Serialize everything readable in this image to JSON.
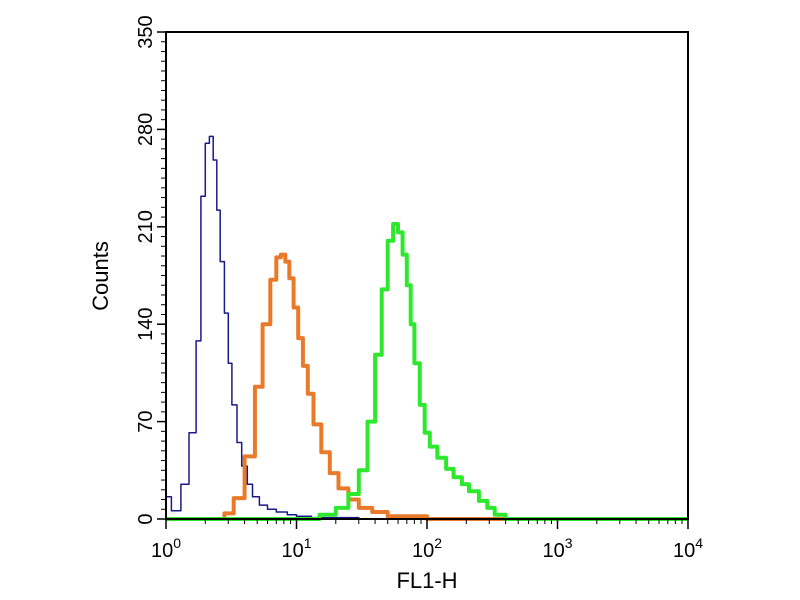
{
  "chart_data": {
    "type": "line",
    "xlabel": "FL1-H",
    "ylabel": "Counts",
    "xscale": "log",
    "xlim": [
      1,
      10000
    ],
    "ylim": [
      0,
      350
    ],
    "x_ticks": [
      {
        "value": 1,
        "base": "10",
        "exp": "0"
      },
      {
        "value": 10,
        "base": "10",
        "exp": "1"
      },
      {
        "value": 100,
        "base": "10",
        "exp": "2"
      },
      {
        "value": 1000,
        "base": "10",
        "exp": "3"
      },
      {
        "value": 10000,
        "base": "10",
        "exp": "4"
      }
    ],
    "y_ticks": [
      {
        "value": 0,
        "label": "0"
      },
      {
        "value": 70,
        "label": "70"
      },
      {
        "value": 140,
        "label": "140"
      },
      {
        "value": 210,
        "label": "210"
      },
      {
        "value": 280,
        "label": "280"
      },
      {
        "value": 350,
        "label": "350"
      }
    ],
    "grid": false,
    "series": [
      {
        "color": "#1a1a8c",
        "line_width": 1.5,
        "x": [
          1.0,
          1.1,
          1.3,
          1.5,
          1.7,
          1.85,
          2.0,
          2.15,
          2.3,
          2.45,
          2.6,
          2.8,
          3.0,
          3.2,
          3.5,
          3.8,
          4.2,
          4.6,
          5.2,
          6.0,
          7.0,
          8.5,
          10,
          13,
          20,
          30,
          50,
          100,
          1000,
          10000
        ],
        "y": [
          16,
          6,
          25,
          62,
          128,
          232,
          270,
          275,
          258,
          222,
          185,
          148,
          112,
          82,
          55,
          38,
          25,
          16,
          10,
          7,
          5,
          3,
          2,
          1,
          1,
          0,
          0,
          0,
          0,
          0
        ]
      },
      {
        "color": "#e87a2a",
        "line_width": 4,
        "x": [
          1.0,
          2.0,
          2.8,
          3.3,
          4.0,
          4.8,
          5.5,
          6.3,
          7.0,
          7.6,
          8.2,
          8.8,
          9.5,
          10.3,
          11.2,
          12.2,
          13.5,
          15.5,
          18,
          21,
          25,
          30,
          38,
          50,
          100,
          1000,
          10000
        ],
        "y": [
          0,
          0,
          4,
          15,
          45,
          95,
          140,
          172,
          188,
          190,
          185,
          173,
          152,
          130,
          110,
          90,
          68,
          48,
          33,
          22,
          14,
          8,
          5,
          2,
          0,
          0,
          0
        ]
      },
      {
        "color": "#2ee82e",
        "line_width": 4,
        "x": [
          1.0,
          10,
          15,
          20,
          25,
          30,
          35,
          40,
          45,
          50,
          55,
          60,
          65,
          70,
          75,
          80,
          88,
          96,
          105,
          120,
          140,
          160,
          185,
          210,
          250,
          290,
          330,
          400,
          1000,
          10000
        ],
        "y": [
          0,
          0,
          3,
          8,
          18,
          35,
          70,
          118,
          165,
          200,
          212,
          206,
          190,
          168,
          140,
          112,
          82,
          62,
          52,
          44,
          36,
          30,
          25,
          20,
          13,
          8,
          3,
          0,
          0,
          0
        ]
      }
    ]
  }
}
